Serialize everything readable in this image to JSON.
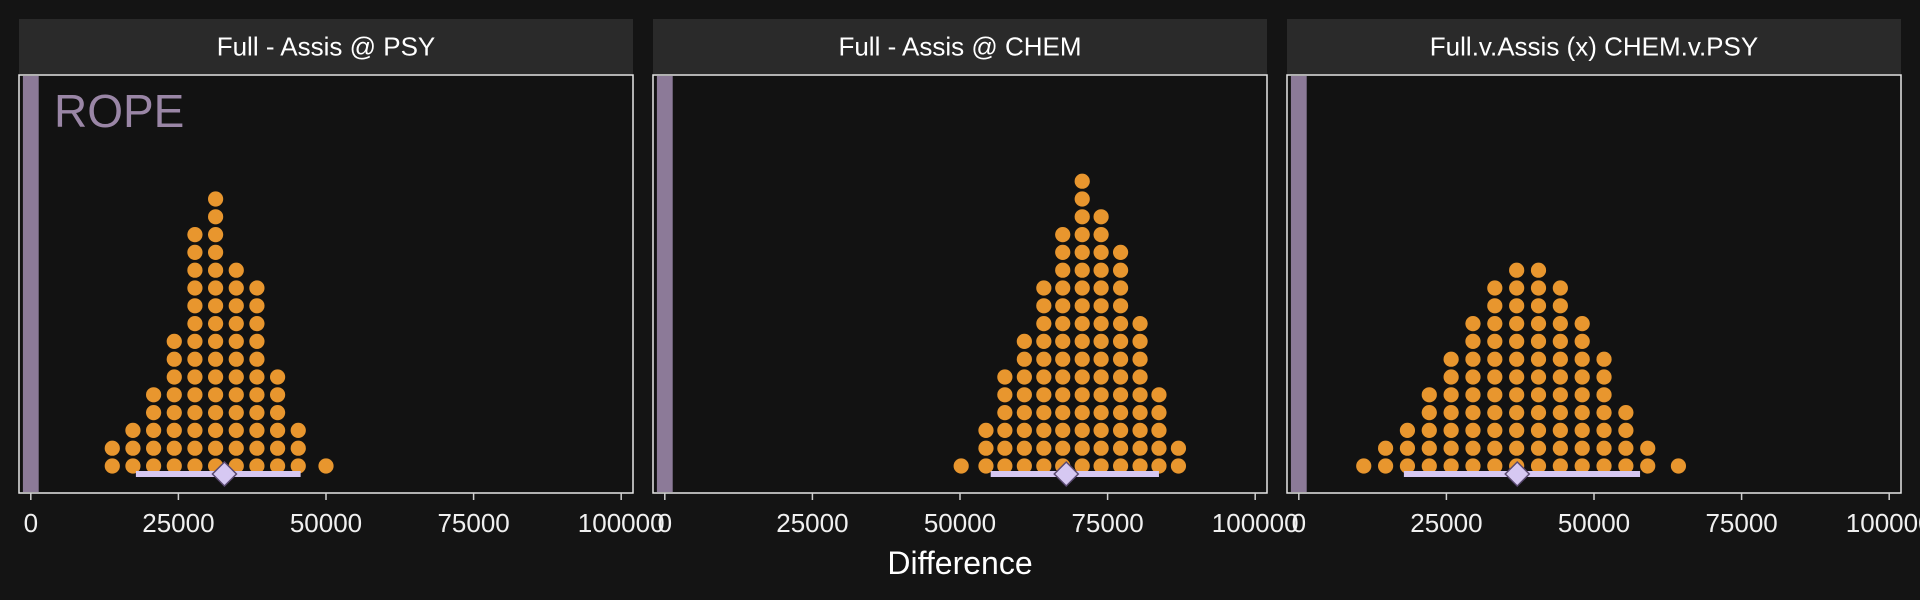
{
  "colors": {
    "background": "#141414",
    "panel": "#121212",
    "strip": "#2a2a2a",
    "dots": "#e8962e",
    "rope": "#8c7a98",
    "rope_label": "#9a86a6",
    "interval": "#d6c8f2",
    "text": "#ffffff",
    "axis_text": "#f0f0f0"
  },
  "chart_data": {
    "type": "dotplot",
    "xlabel": "Difference",
    "xlim": [
      -2000,
      102000
    ],
    "xticks": [
      0,
      25000,
      50000,
      75000,
      100000
    ],
    "xtick_labels": [
      "0",
      "25000",
      "50000",
      "75000",
      "100000"
    ],
    "grid": false,
    "rope": {
      "label": "ROPE",
      "range": [
        -1000,
        1000
      ]
    },
    "panels": [
      {
        "title": "Full - Assis @ PSY",
        "bin_centers": [
          13800,
          17300,
          20800,
          24300,
          27800,
          31300,
          34800,
          38300,
          41800,
          45300,
          50000
        ],
        "counts": [
          2,
          3,
          5,
          8,
          14,
          16,
          12,
          11,
          6,
          3,
          1
        ],
        "point_estimate": 32800,
        "interval": [
          17800,
          45700
        ]
      },
      {
        "title": "Full - Assis @ CHEM",
        "bin_centers": [
          50200,
          54400,
          57600,
          60900,
          64200,
          67400,
          70700,
          73900,
          77200,
          80500,
          83700,
          87000
        ],
        "counts": [
          1,
          3,
          6,
          8,
          11,
          14,
          17,
          15,
          13,
          9,
          5,
          2
        ],
        "point_estimate": 68000,
        "interval": [
          55200,
          83700
        ]
      },
      {
        "title": "Full.v.Assis (x) CHEM.v.PSY",
        "bin_centers": [
          11000,
          14700,
          18400,
          22100,
          25800,
          29500,
          33200,
          36900,
          40600,
          44300,
          48000,
          51700,
          55400,
          59100,
          64300
        ],
        "counts": [
          1,
          2,
          3,
          5,
          7,
          9,
          11,
          12,
          12,
          11,
          9,
          7,
          4,
          2,
          1
        ],
        "point_estimate": 37000,
        "interval": [
          17800,
          57800
        ]
      }
    ]
  }
}
